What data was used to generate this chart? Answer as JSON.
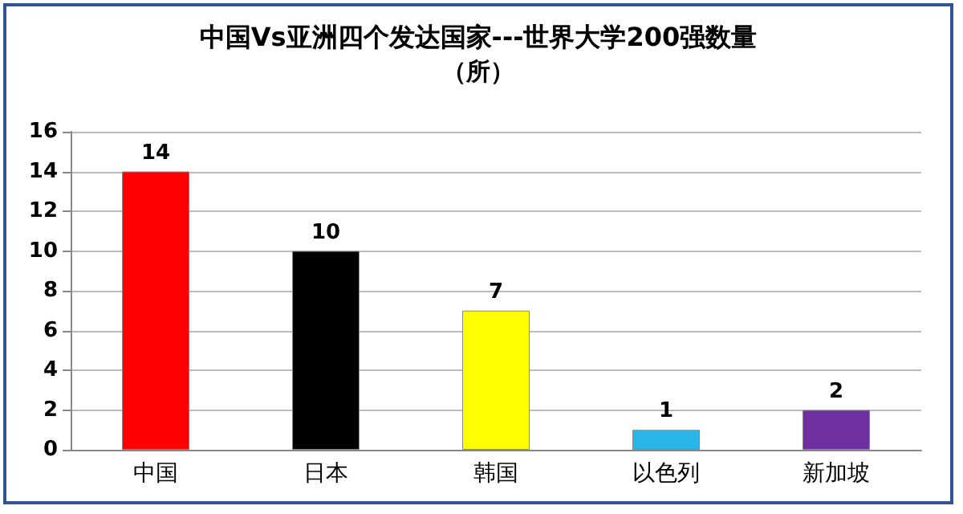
{
  "chart_data": {
    "type": "bar",
    "title": "中国Vs亚洲四个发达国家---世界大学200强数量",
    "subtitle": "（所）",
    "categories": [
      "中国",
      "日本",
      "韩国",
      "以色列",
      "新加坡"
    ],
    "values": [
      14,
      10,
      7,
      1,
      2
    ],
    "colors": [
      "#ff0000",
      "#000000",
      "#ffff00",
      "#29b6e8",
      "#7030a0"
    ],
    "ylim": [
      0,
      16
    ],
    "yticks": [
      0,
      2,
      4,
      6,
      8,
      10,
      12,
      14,
      16
    ],
    "grid": "y",
    "data_labels": true
  }
}
